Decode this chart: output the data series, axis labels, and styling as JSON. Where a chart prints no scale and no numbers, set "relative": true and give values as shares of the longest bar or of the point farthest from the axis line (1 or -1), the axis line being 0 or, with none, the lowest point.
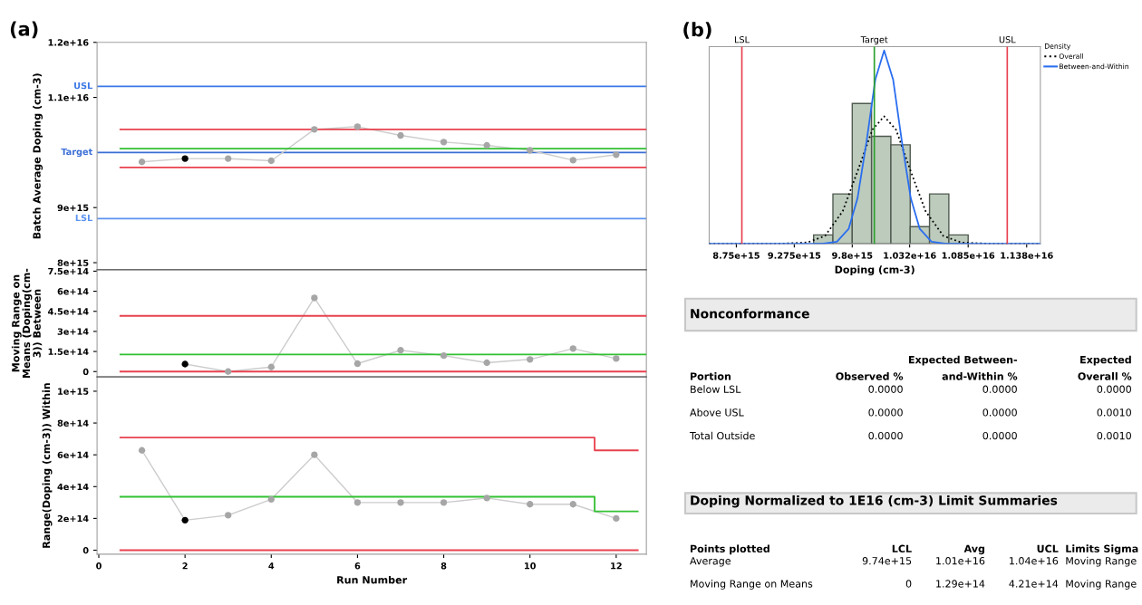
{
  "chart_data": [
    {
      "type": "line",
      "ylabel": "Batch Average Doping (cm-3)",
      "annotations": [
        "(a)"
      ],
      "xlim": [
        -0.04,
        12.7
      ],
      "xticks": [
        0,
        2,
        4,
        6,
        8,
        10,
        12
      ],
      "ylim": [
        7870000000000000.0,
        1.2e+16
      ],
      "yticks": [
        {
          "value": 8000000000000000.0,
          "label": "8e+15"
        },
        {
          "value": 9000000000000000.0,
          "label": "9e+15"
        },
        {
          "value": 1.1e+16,
          "label": "1.1e+16"
        },
        {
          "value": 1.2e+16,
          "label": "1.2e+16"
        }
      ],
      "tick_labels": "y",
      "ref_lines": [
        {
          "axis": "y",
          "value": 1.12e+16,
          "label": "USL",
          "color": "#3b78e7"
        },
        {
          "axis": "y",
          "value": 1e+16,
          "label": "Target",
          "color": "#3b6fd6"
        },
        {
          "axis": "y",
          "value": 8800000000000000.0,
          "label": "LSL",
          "color": "#5b93f0"
        }
      ],
      "series": [
        {
          "color": "#cccccc",
          "marker": "circle",
          "x": [
            1,
            2,
            3,
            4,
            5,
            6,
            7,
            8,
            9,
            10,
            11,
            12
          ],
          "values": [
            9830000000000000.0,
            9890000000000000.0,
            9890000000000000.0,
            9850000000000000.0,
            1.042e+16,
            1.047e+16,
            1.031e+16,
            1.019e+16,
            1.013e+16,
            1.004e+16,
            9860000000000000.0,
            9960000000000000.0
          ],
          "colors": [
            "#a6a6a6",
            "#000000",
            "#a6a6a6",
            "#a6a6a6",
            "#a6a6a6",
            "#a6a6a6",
            "#a6a6a6",
            "#a6a6a6",
            "#a6a6a6",
            "#a6a6a6",
            "#a6a6a6",
            "#a6a6a6"
          ]
        },
        {
          "color": "#e8414e",
          "x": [
            0.5,
            12.7
          ],
          "values": [
            1.042e+16,
            1.042e+16
          ]
        },
        {
          "color": "#33c133",
          "x": [
            0.5,
            12.7
          ],
          "values": [
            1.007e+16,
            1.007e+16
          ]
        },
        {
          "color": "#e8414e",
          "x": [
            0.5,
            12.7
          ],
          "values": [
            9730000000000000.0,
            9730000000000000.0
          ]
        }
      ]
    },
    {
      "type": "line",
      "ylabel": "Moving Range on\nMeans (Doping(cm-\n3)) Between",
      "xlim": [
        -0.04,
        12.7
      ],
      "xticks": [
        0,
        2,
        4,
        6,
        8,
        10,
        12
      ],
      "ylim": [
        -40000000000000.0,
        760000000000000.0
      ],
      "yticks": [
        0,
        {
          "value": 150000000000000.0,
          "label": "1.5e+14"
        },
        {
          "value": 300000000000000.0,
          "label": "3e+14"
        },
        {
          "value": 450000000000000.0,
          "label": "4.5e+14"
        },
        {
          "value": 600000000000000.0,
          "label": "6e+14"
        },
        {
          "value": 750000000000000.0,
          "label": "7.5e+14"
        }
      ],
      "tick_labels": "y",
      "series": [
        {
          "color": "#cccccc",
          "marker": "circle",
          "x": [
            2,
            3,
            4,
            5,
            6,
            7,
            8,
            9,
            10,
            11,
            12
          ],
          "values": [
            56000000000000.0,
            0,
            34000000000000.0,
            550000000000000.0,
            59000000000000.0,
            159000000000000.0,
            119000000000000.0,
            66000000000000.0,
            91000000000000.0,
            172000000000000.0,
            97000000000000.0
          ],
          "colors": [
            "#000000",
            "#a6a6a6",
            "#a6a6a6",
            "#a6a6a6",
            "#a6a6a6",
            "#a6a6a6",
            "#a6a6a6",
            "#a6a6a6",
            "#a6a6a6",
            "#a6a6a6",
            "#a6a6a6"
          ]
        },
        {
          "color": "#e8414e",
          "x": [
            0.5,
            12.7
          ],
          "values": [
            416000000000000.0,
            416000000000000.0
          ]
        },
        {
          "color": "#33c133",
          "x": [
            0.5,
            12.7
          ],
          "values": [
            128000000000000.0,
            128000000000000.0
          ]
        },
        {
          "color": "#e8414e",
          "x": [
            0.5,
            12.7
          ],
          "values": [
            0,
            0
          ]
        }
      ]
    },
    {
      "type": "line",
      "ylabel": "Range(Doping (cm-3)) Within",
      "xlabel": "Run Number",
      "xlim": [
        -0.04,
        12.7
      ],
      "xticks": [
        0,
        2,
        4,
        6,
        8,
        10,
        12
      ],
      "ylim": [
        -25000000000000.0,
        1090000000000000.0
      ],
      "yticks": [
        0,
        {
          "value": 200000000000000.0,
          "label": "2e+14"
        },
        {
          "value": 400000000000000.0,
          "label": "4e+14"
        },
        {
          "value": 600000000000000.0,
          "label": "6e+14"
        },
        {
          "value": 800000000000000.0,
          "label": "8e+14"
        },
        {
          "value": 1000000000000000.0,
          "label": "1e+15"
        }
      ],
      "series": [
        {
          "color": "#cccccc",
          "marker": "circle",
          "x": [
            1,
            2,
            3,
            4,
            5,
            6,
            7,
            8,
            9,
            10,
            11,
            12
          ],
          "values": [
            628000000000000.0,
            189000000000000.0,
            220000000000000.0,
            320000000000000.0,
            600000000000000.0,
            300000000000000.0,
            300000000000000.0,
            300000000000000.0,
            328000000000000.0,
            289000000000000.0,
            289000000000000.0,
            200000000000000.0
          ],
          "colors": [
            "#a6a6a6",
            "#000000",
            "#a6a6a6",
            "#a6a6a6",
            "#a6a6a6",
            "#a6a6a6",
            "#a6a6a6",
            "#a6a6a6",
            "#a6a6a6",
            "#a6a6a6",
            "#a6a6a6",
            "#a6a6a6"
          ]
        },
        {
          "color": "#e8414e",
          "x": [
            0.5,
            11.5,
            11.5,
            12.5
          ],
          "values": [
            708000000000000.0,
            708000000000000.0,
            628000000000000.0,
            628000000000000.0
          ]
        },
        {
          "color": "#33c133",
          "x": [
            0.5,
            11.5,
            11.5,
            12.5
          ],
          "values": [
            336000000000000.0,
            336000000000000.0,
            244000000000000.0,
            244000000000000.0
          ]
        },
        {
          "color": "#e8414e",
          "x": [
            0.5,
            12.5
          ],
          "values": [
            0,
            0
          ]
        }
      ]
    },
    {
      "type": "histogram",
      "relative": true,
      "xlabel": "Doping (cm-3)",
      "annotations": [
        "(b)"
      ],
      "legend_title": "Density",
      "legend": "top right",
      "tick_labels": "x",
      "color": "#bccbbc",
      "bins": [
        9450000000000000.0,
        9625000000000000.0,
        9800000000000000.0,
        9975000000000000.0,
        1.015e+16,
        1.0325e+16,
        1.05e+16,
        1.0675e+16,
        1.085e+16
      ],
      "values": [
        0.046,
        0.258,
        0.726,
        0.556,
        0.512,
        0.089,
        0.258,
        0.046
      ],
      "xlim": [
        8504000000000000.0,
        1.1504e+16
      ],
      "xticks": [
        {
          "value": 8750000000000000.0,
          "label": "8.75e+15"
        },
        {
          "value": 9275000000000000.0,
          "label": "9.275e+15"
        },
        {
          "value": 9800000000000000.0,
          "label": "9.8e+15"
        },
        {
          "value": 1.032e+16,
          "label": "1.032e+16"
        },
        {
          "value": 1.085e+16,
          "label": "1.085e+16"
        },
        {
          "value": 1.138e+16,
          "label": "1.138e+16"
        }
      ],
      "ref_lines": [
        {
          "axis": "x",
          "value": 8800000000000000.0,
          "label": "LSL",
          "color": "#e8414e"
        },
        {
          "axis": "x",
          "value": 1e+16,
          "label": "Target",
          "color": "#2ca02c"
        },
        {
          "axis": "x",
          "value": 1.1204e+16,
          "label": "USL",
          "color": "#e8414e"
        }
      ],
      "series": [
        {
          "type": "line",
          "name": "Overall",
          "color": "#000000",
          "line_style": "dotted",
          "x": [
            8504000000000000.0,
            9125000000000000.0,
            9393000000000000.0,
            9554000000000000.0,
            9714000000000000.0,
            9848000000000000.0,
            9982000000000000.0,
            1.0089e+16,
            1.0197e+16,
            1.033e+16,
            1.0464e+16,
            1.0625e+16,
            1.0786e+16,
            1.1054e+16,
            1.1504e+16
          ],
          "values": [
            0,
            0,
            0.007,
            0.041,
            0.169,
            0.375,
            0.59,
            0.659,
            0.59,
            0.375,
            0.169,
            0.041,
            0.007,
            0,
            0
          ]
        },
        {
          "type": "line",
          "name": "Between-and-Within",
          "color": "#2a6ef0",
          "line_style": "solid",
          "x": [
            8504000000000000.0,
            9527000000000000.0,
            9661000000000000.0,
            9768000000000000.0,
            9848000000000000.0,
            9929000000000000.0,
            1.0009e+16,
            1.0089e+16,
            1.017e+16,
            1.025e+16,
            1.033e+16,
            1.0411e+16,
            1.0518e+16,
            1.0652e+16,
            1.1504e+16
          ],
          "values": [
            0,
            0,
            0.011,
            0.078,
            0.236,
            0.527,
            0.85,
            1,
            0.85,
            0.527,
            0.236,
            0.078,
            0.011,
            0,
            0
          ]
        }
      ]
    },
    {
      "type": "other",
      "title": "Nonconformance",
      "xlabel": "Portion",
      "categories": [
        "Below LSL",
        "Above USL",
        "Total Outside"
      ],
      "series": [
        {
          "name": "Observed %",
          "values": [
            0,
            0,
            0
          ],
          "value_labels": [
            "0.0000",
            "0.0000",
            "0.0000"
          ]
        },
        {
          "name": "Expected Between-\nand-Within %",
          "values": [
            0,
            0,
            0
          ],
          "value_labels": [
            "0.0000",
            "0.0000",
            "0.0000"
          ]
        },
        {
          "name": "Expected\nOverall %",
          "values": [
            0,
            0.001,
            0.001
          ],
          "value_labels": [
            "0.0000",
            "0.0010",
            "0.0010"
          ]
        }
      ]
    },
    {
      "type": "other",
      "title": "Doping Normalized to 1E16 (cm-3) Limit Summaries",
      "xlabel": "Points plotted",
      "categories": [
        "Average",
        "Moving Range on Means"
      ],
      "series": [
        {
          "name": "LCL",
          "values": [
            9740000000000000.0,
            0
          ],
          "value_labels": [
            "9.74e+15",
            "0"
          ]
        },
        {
          "name": "Avg",
          "values": [
            1.01e+16,
            129000000000000.0
          ],
          "value_labels": [
            "1.01e+16",
            "1.29e+14"
          ]
        },
        {
          "name": "UCL",
          "values": [
            1.04e+16,
            421000000000000.0
          ],
          "value_labels": [
            "1.04e+16",
            "4.21e+14"
          ]
        },
        {
          "name": "Limits Sigma",
          "values": [
            null,
            null
          ],
          "value_labels": [
            "Moving Range",
            "Moving Range"
          ]
        }
      ]
    }
  ]
}
